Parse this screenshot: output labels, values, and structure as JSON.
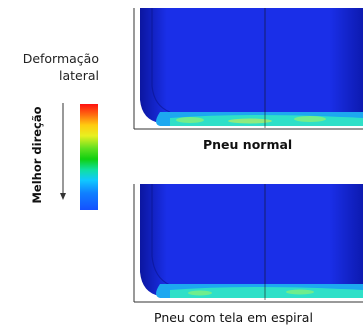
{
  "legend": {
    "title_line1": "Deformação",
    "title_line2": "lateral",
    "direction_label": "Melhor direção",
    "gradient_top": "#ff1010",
    "gradient_bottom": "#1450ff"
  },
  "captions": {
    "top": "Pneu normal",
    "bottom": "Pneu com tela em espiral"
  },
  "colors": {
    "tire_blue": "#1a2fe8",
    "tire_dark": "#0d1ab0",
    "contact_cyan": "#2fe0c8",
    "axis_line": "#333333"
  }
}
